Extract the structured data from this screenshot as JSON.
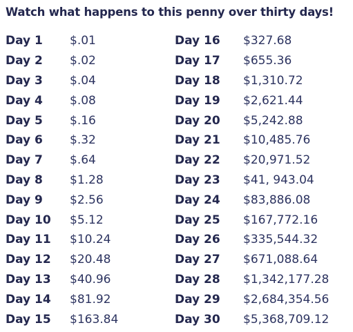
{
  "title": "Watch what happens to this penny over thirty days!",
  "left_column": [
    {
      "day": "Day 1",
      "amount": "$.01"
    },
    {
      "day": "Day 2",
      "amount": "$.02"
    },
    {
      "day": "Day 3",
      "amount": "$.04"
    },
    {
      "day": "Day 4",
      "amount": "$.08"
    },
    {
      "day": "Day 5",
      "amount": "$.16"
    },
    {
      "day": "Day 6",
      "amount": "$.32"
    },
    {
      "day": "Day 7",
      "amount": "$.64"
    },
    {
      "day": "Day 8",
      "amount": "$1.28"
    },
    {
      "day": "Day 9",
      "amount": "$2.56"
    },
    {
      "day": "Day 10",
      "amount": "$5.12"
    },
    {
      "day": "Day 11",
      "amount": "$10.24"
    },
    {
      "day": "Day 12",
      "amount": "$20.48"
    },
    {
      "day": "Day 13",
      "amount": "$40.96"
    },
    {
      "day": "Day 14",
      "amount": "$81.92"
    },
    {
      "day": "Day 15",
      "amount": "$163.84"
    }
  ],
  "right_column": [
    {
      "day": "Day 16",
      "amount": "$327.68"
    },
    {
      "day": "Day 17",
      "amount": "$655.36"
    },
    {
      "day": "Day 18",
      "amount": "$1,310.72"
    },
    {
      "day": "Day 19",
      "amount": "$2,621.44"
    },
    {
      "day": "Day 20",
      "amount": "$5,242.88"
    },
    {
      "day": "Day 21",
      "amount": "$10,485.76"
    },
    {
      "day": "Day 22",
      "amount": "$20,971.52"
    },
    {
      "day": "Day 23",
      "amount": "$41, 943.04"
    },
    {
      "day": "Day 24",
      "amount": "$83,886.08"
    },
    {
      "day": "Day 25",
      "amount": "$167,772.16"
    },
    {
      "day": "Day 26",
      "amount": "$335,544.32"
    },
    {
      "day": "Day 27",
      "amount": "$671,088.64"
    },
    {
      "day": "Day 28",
      "amount": "$1,342,177.28"
    },
    {
      "day": "Day 29",
      "amount": "$2,684,354.56"
    },
    {
      "day": "Day 30",
      "amount": "$5,368,709.12"
    }
  ]
}
